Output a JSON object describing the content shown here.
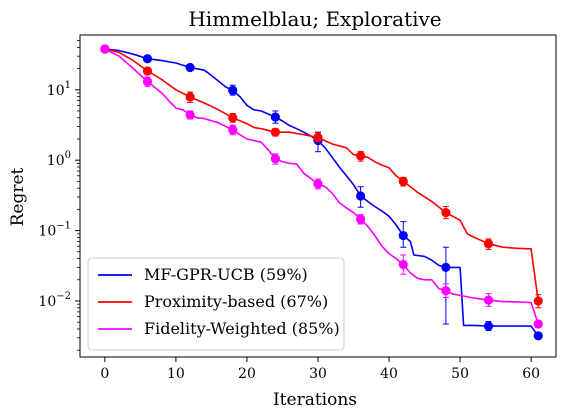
{
  "chart_data": {
    "type": "line",
    "title": "Himmelblau; Explorative",
    "xlabel": "Iterations",
    "ylabel": "Regret",
    "xlim": [
      -3.5,
      63.5
    ],
    "ylim": [
      0.0016,
      60
    ],
    "yscale": "log",
    "grid": false,
    "legend_position": "lower-left",
    "x_ticks": [
      {
        "value": 0,
        "label": "0"
      },
      {
        "value": 10,
        "label": "10"
      },
      {
        "value": 20,
        "label": "20"
      },
      {
        "value": 30,
        "label": "30"
      },
      {
        "value": 40,
        "label": "40"
      },
      {
        "value": 50,
        "label": "50"
      },
      {
        "value": 60,
        "label": "60"
      }
    ],
    "y_ticks": [
      {
        "value": 10,
        "label": "10^1",
        "base": "10",
        "exp": "1"
      },
      {
        "value": 1,
        "label": "10^0",
        "base": "10",
        "exp": "0"
      },
      {
        "value": 0.1,
        "label": "10^-1",
        "base": "10",
        "exp": "−1"
      },
      {
        "value": 0.01,
        "label": "10^-2",
        "base": "10",
        "exp": "−2"
      }
    ],
    "series": [
      {
        "name": "MF-GPR-UCB (59%)",
        "color": "#0000ff",
        "line": [
          [
            0,
            38
          ],
          [
            2,
            36
          ],
          [
            4,
            32
          ],
          [
            6,
            27.6
          ],
          [
            8,
            26
          ],
          [
            10,
            24
          ],
          [
            12,
            20.7
          ],
          [
            14,
            19
          ],
          [
            15,
            16
          ],
          [
            17,
            11
          ],
          [
            18,
            9.8
          ],
          [
            19,
            8
          ],
          [
            20,
            6
          ],
          [
            21,
            5.2
          ],
          [
            22,
            5.0
          ],
          [
            24,
            4.1
          ],
          [
            25,
            3.6
          ],
          [
            26,
            3.1
          ],
          [
            27,
            2.8
          ],
          [
            28,
            2.5
          ],
          [
            29,
            2.2
          ],
          [
            30,
            1.9
          ],
          [
            31,
            1.5
          ],
          [
            32,
            1.1
          ],
          [
            33,
            0.8
          ],
          [
            34,
            0.6
          ],
          [
            35,
            0.45
          ],
          [
            36,
            0.31
          ],
          [
            37,
            0.26
          ],
          [
            38,
            0.22
          ],
          [
            39,
            0.19
          ],
          [
            40,
            0.16
          ],
          [
            41,
            0.12
          ],
          [
            42,
            0.085
          ],
          [
            43,
            0.07
          ],
          [
            43.5,
            0.045
          ],
          [
            45,
            0.043
          ],
          [
            46,
            0.038
          ],
          [
            47,
            0.032
          ],
          [
            48,
            0.03
          ],
          [
            49,
            0.03
          ],
          [
            50,
            0.03
          ],
          [
            50.5,
            0.0045
          ],
          [
            52,
            0.0045
          ],
          [
            54,
            0.0044
          ],
          [
            56,
            0.0044
          ],
          [
            58,
            0.0044
          ],
          [
            60,
            0.0044
          ],
          [
            61,
            0.0032
          ]
        ],
        "markers": [
          {
            "x": 0,
            "y": 38,
            "lo": 36,
            "hi": 40
          },
          {
            "x": 6,
            "y": 27.6,
            "lo": 26,
            "hi": 29.5
          },
          {
            "x": 12,
            "y": 20.7,
            "lo": 19.3,
            "hi": 22.3
          },
          {
            "x": 18,
            "y": 9.8,
            "lo": 8.4,
            "hi": 11.6
          },
          {
            "x": 24,
            "y": 4.1,
            "lo": 3.35,
            "hi": 5.0
          },
          {
            "x": 30,
            "y": 1.9,
            "lo": 1.32,
            "hi": 2.5
          },
          {
            "x": 36,
            "y": 0.31,
            "lo": 0.215,
            "hi": 0.42
          },
          {
            "x": 42,
            "y": 0.085,
            "lo": 0.058,
            "hi": 0.134
          },
          {
            "x": 48,
            "y": 0.03,
            "lo": 0.0047,
            "hi": 0.058
          },
          {
            "x": 54,
            "y": 0.0044,
            "lo": 0.0038,
            "hi": 0.0051
          },
          {
            "x": 61,
            "y": 0.0032,
            "lo": 0.0029,
            "hi": 0.0035
          }
        ]
      },
      {
        "name": "Proximity-based (67%)",
        "color": "#ff0000",
        "line": [
          [
            0,
            38
          ],
          [
            2,
            34
          ],
          [
            4,
            26
          ],
          [
            6,
            18.5
          ],
          [
            8,
            14
          ],
          [
            10,
            10
          ],
          [
            12,
            7.9
          ],
          [
            14,
            6.5
          ],
          [
            16,
            5.2
          ],
          [
            18,
            4.0
          ],
          [
            20,
            3.3
          ],
          [
            21,
            2.9
          ],
          [
            22,
            2.8
          ],
          [
            24,
            2.5
          ],
          [
            26,
            2.5
          ],
          [
            28,
            2.3
          ],
          [
            30,
            2.1
          ],
          [
            32,
            1.7
          ],
          [
            34,
            1.5
          ],
          [
            35,
            1.2
          ],
          [
            36,
            1.15
          ],
          [
            37,
            1.1
          ],
          [
            38,
            0.95
          ],
          [
            39,
            0.85
          ],
          [
            40,
            0.78
          ],
          [
            41,
            0.6
          ],
          [
            42,
            0.5
          ],
          [
            44,
            0.35
          ],
          [
            46,
            0.26
          ],
          [
            48,
            0.18
          ],
          [
            50,
            0.14
          ],
          [
            51,
            0.09
          ],
          [
            52,
            0.08
          ],
          [
            54,
            0.065
          ],
          [
            56,
            0.058
          ],
          [
            58,
            0.056
          ],
          [
            60,
            0.055
          ],
          [
            61,
            0.01
          ]
        ],
        "markers": [
          {
            "x": 0,
            "y": 38,
            "lo": 36,
            "hi": 40
          },
          {
            "x": 6,
            "y": 18.5,
            "lo": 16.5,
            "hi": 20.5
          },
          {
            "x": 12,
            "y": 7.9,
            "lo": 6.6,
            "hi": 9.3
          },
          {
            "x": 18,
            "y": 4.0,
            "lo": 3.45,
            "hi": 4.6
          },
          {
            "x": 24,
            "y": 2.5,
            "lo": 2.2,
            "hi": 2.8
          },
          {
            "x": 30,
            "y": 2.1,
            "lo": 1.82,
            "hi": 2.45
          },
          {
            "x": 36,
            "y": 1.15,
            "lo": 0.97,
            "hi": 1.33
          },
          {
            "x": 42,
            "y": 0.5,
            "lo": 0.43,
            "hi": 0.57
          },
          {
            "x": 48,
            "y": 0.18,
            "lo": 0.148,
            "hi": 0.22
          },
          {
            "x": 54,
            "y": 0.065,
            "lo": 0.054,
            "hi": 0.076
          },
          {
            "x": 61,
            "y": 0.01,
            "lo": 0.008,
            "hi": 0.0123
          }
        ]
      },
      {
        "name": "Fidelity-Weighted (85%)",
        "color": "#ff00ff",
        "line": [
          [
            0,
            38
          ],
          [
            2,
            30
          ],
          [
            4,
            20
          ],
          [
            6,
            13.1
          ],
          [
            8,
            9
          ],
          [
            9,
            7
          ],
          [
            10,
            5.5
          ],
          [
            11,
            5.2
          ],
          [
            12,
            4.4
          ],
          [
            13,
            4.0
          ],
          [
            14,
            3.9
          ],
          [
            16,
            3.4
          ],
          [
            18,
            2.7
          ],
          [
            19,
            2.3
          ],
          [
            20,
            2.0
          ],
          [
            22,
            1.8
          ],
          [
            23,
            1.4
          ],
          [
            24,
            1.05
          ],
          [
            25,
            0.95
          ],
          [
            26,
            0.9
          ],
          [
            27,
            0.88
          ],
          [
            28,
            0.65
          ],
          [
            30,
            0.46
          ],
          [
            31,
            0.42
          ],
          [
            32,
            0.34
          ],
          [
            33,
            0.25
          ],
          [
            34,
            0.21
          ],
          [
            35,
            0.18
          ],
          [
            36,
            0.145
          ],
          [
            37,
            0.115
          ],
          [
            38,
            0.085
          ],
          [
            39,
            0.06
          ],
          [
            40,
            0.047
          ],
          [
            41,
            0.04
          ],
          [
            42,
            0.033
          ],
          [
            43,
            0.025
          ],
          [
            44,
            0.021
          ],
          [
            45,
            0.02
          ],
          [
            46,
            0.02
          ],
          [
            47,
            0.015
          ],
          [
            48,
            0.014
          ],
          [
            49,
            0.0125
          ],
          [
            50,
            0.012
          ],
          [
            52,
            0.011
          ],
          [
            54,
            0.0103
          ],
          [
            56,
            0.0098
          ],
          [
            58,
            0.0097
          ],
          [
            60,
            0.0095
          ],
          [
            61,
            0.0047
          ]
        ],
        "markers": [
          {
            "x": 0,
            "y": 38,
            "lo": 36,
            "hi": 40
          },
          {
            "x": 6,
            "y": 13.1,
            "lo": 11.2,
            "hi": 15.2
          },
          {
            "x": 12,
            "y": 4.4,
            "lo": 3.85,
            "hi": 5.0
          },
          {
            "x": 18,
            "y": 2.7,
            "lo": 2.3,
            "hi": 3.15
          },
          {
            "x": 24,
            "y": 1.05,
            "lo": 0.88,
            "hi": 1.23
          },
          {
            "x": 30,
            "y": 0.46,
            "lo": 0.39,
            "hi": 0.54
          },
          {
            "x": 36,
            "y": 0.145,
            "lo": 0.124,
            "hi": 0.168
          },
          {
            "x": 42,
            "y": 0.033,
            "lo": 0.024,
            "hi": 0.045
          },
          {
            "x": 48,
            "y": 0.014,
            "lo": 0.0112,
            "hi": 0.0175
          },
          {
            "x": 54,
            "y": 0.0103,
            "lo": 0.0084,
            "hi": 0.0127
          },
          {
            "x": 61,
            "y": 0.0047,
            "lo": 0.0042,
            "hi": 0.0052
          }
        ]
      }
    ]
  }
}
